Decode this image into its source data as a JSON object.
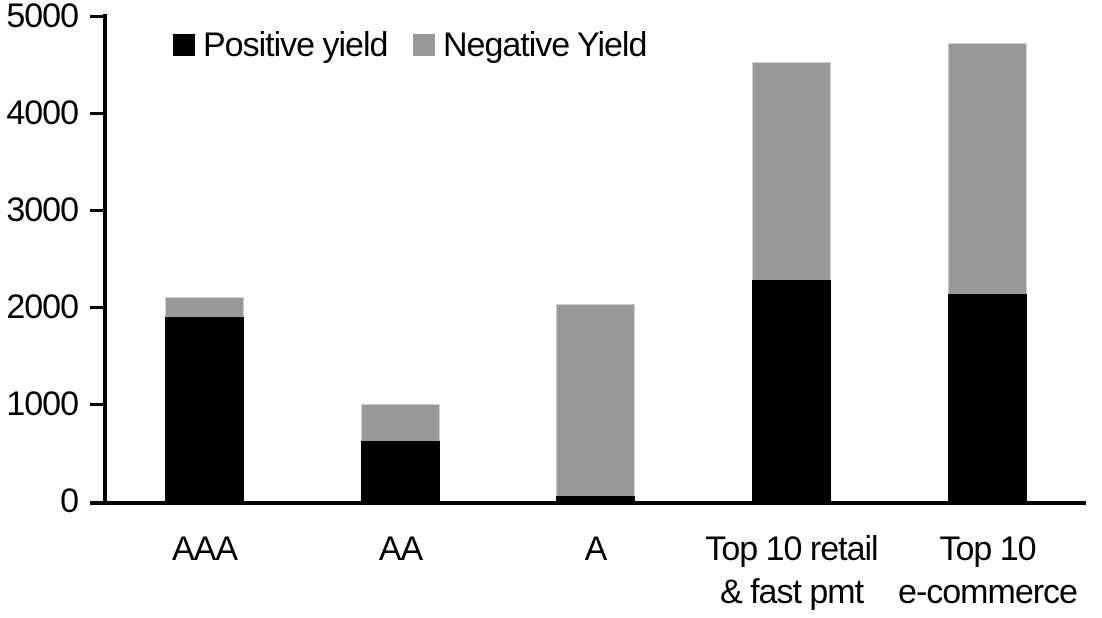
{
  "chart_data": {
    "type": "bar",
    "stacked": true,
    "title": "",
    "xlabel": "",
    "ylabel": "",
    "categories": [
      "AAA",
      "AA",
      "A",
      "Top 10 retail & fast pmt",
      "Top 10 e-commerce"
    ],
    "category_label_lines": [
      [
        "AAA"
      ],
      [
        "AA"
      ],
      [
        "A"
      ],
      [
        "Top 10 retail",
        "& fast pmt"
      ],
      [
        "Top 10",
        "e-commerce"
      ]
    ],
    "series": [
      {
        "name": "Positive yield",
        "color": "#000000",
        "values": [
          1900,
          620,
          50,
          2280,
          2130
        ]
      },
      {
        "name": "Negative Yield",
        "color": "#999999",
        "values": [
          200,
          380,
          1980,
          2250,
          2590
        ]
      }
    ],
    "totals": [
      2100,
      1000,
      2030,
      4530,
      4720
    ],
    "ylim": [
      0,
      5000
    ],
    "yticks": [
      "0",
      "1000",
      "2000",
      "3000",
      "4000",
      "5000"
    ],
    "ytick_values": [
      0,
      1000,
      2000,
      3000,
      4000,
      5000
    ],
    "grid": false,
    "legend_position": "top",
    "axis_color": "#000000",
    "background_color": "#ffffff",
    "bar_outline_color": "#cfcfcf"
  }
}
